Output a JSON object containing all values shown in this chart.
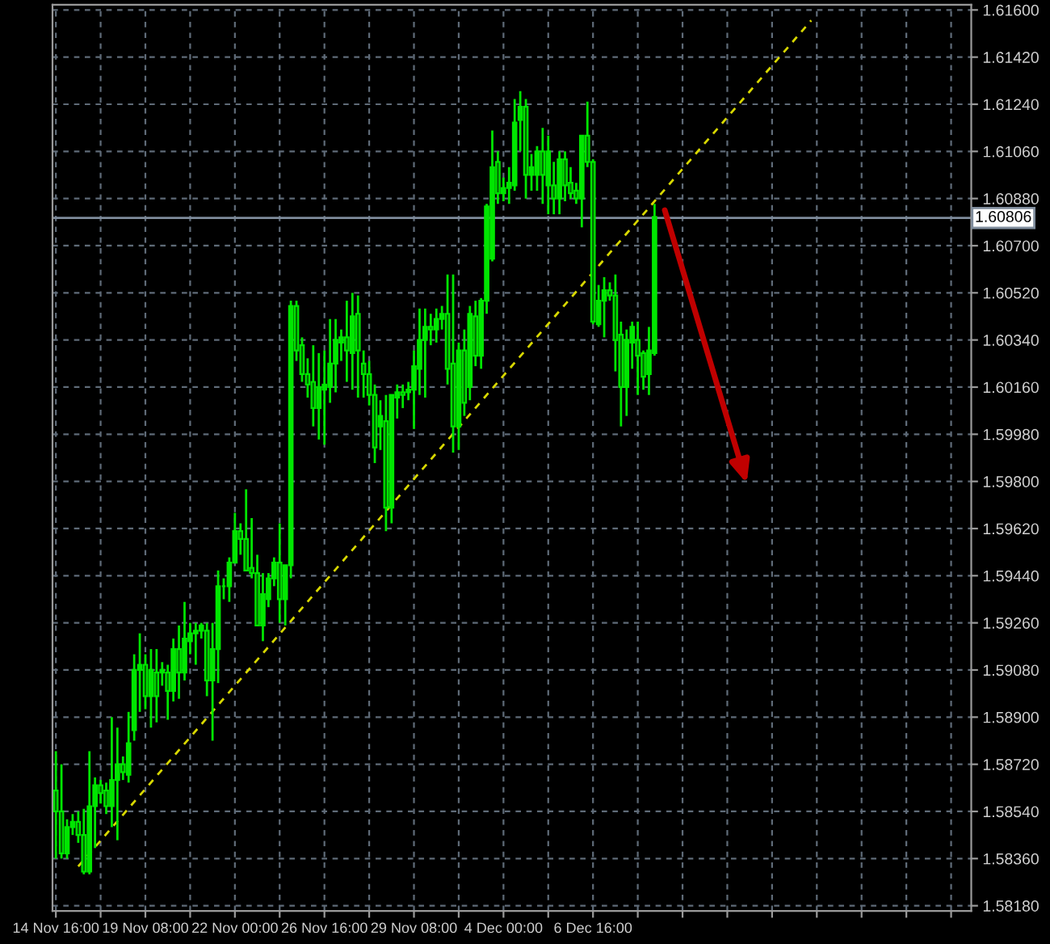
{
  "chart_data": {
    "type": "candlestick",
    "color": "#00e600",
    "categories": [
      "14 Nov 16:00",
      null,
      null,
      null,
      null,
      null,
      null,
      null,
      null,
      null,
      null,
      null,
      null,
      null,
      null,
      null,
      "19 Nov 08:00",
      null,
      null,
      null,
      null,
      null,
      null,
      null,
      null,
      null,
      null,
      null,
      null,
      null,
      null,
      null,
      "22 Nov 00:00",
      null,
      null,
      null,
      null,
      null,
      null,
      null,
      null,
      null,
      null,
      null,
      null,
      null,
      null,
      null,
      "26 Nov 16:00",
      null,
      null,
      null,
      null,
      null,
      null,
      null,
      null,
      null,
      null,
      null,
      null,
      null,
      null,
      null,
      "29 Nov 08:00",
      null,
      null,
      null,
      null,
      null,
      null,
      null,
      null,
      null,
      null,
      null,
      null,
      null,
      null,
      null,
      "4 Dec 00:00",
      null,
      null,
      null,
      null,
      null,
      null,
      null,
      null,
      null,
      null,
      null,
      null,
      null,
      null,
      null,
      "6 Dec 16:00",
      null,
      null,
      null,
      null,
      null,
      null,
      null,
      null,
      null,
      null,
      null,
      null,
      null,
      null,
      null,
      null,
      null,
      null,
      null,
      null,
      null,
      null,
      null,
      null,
      null,
      null,
      null,
      null,
      null,
      null,
      null,
      null,
      null,
      null,
      null,
      null,
      null,
      null,
      null,
      null,
      null,
      null,
      null,
      null,
      null,
      null,
      null,
      null,
      null,
      null,
      null,
      null,
      null,
      null,
      null,
      null,
      null,
      null,
      null,
      null,
      null,
      null,
      null,
      null,
      null,
      null,
      null
    ],
    "ohlc": [
      [
        1.5862,
        1.5877,
        1.5836,
        1.5854
      ],
      [
        1.5854,
        1.5872,
        1.5836,
        1.5838
      ],
      [
        1.5838,
        1.5851,
        1.5836,
        1.5848
      ],
      [
        1.5848,
        1.5853,
        1.5845,
        1.585
      ],
      [
        1.585,
        1.5854,
        1.5842,
        1.5845
      ],
      [
        1.5845,
        1.5855,
        1.583,
        1.5831
      ],
      [
        1.5831,
        1.5877,
        1.583,
        1.5856
      ],
      [
        1.5856,
        1.5867,
        1.584,
        1.5864
      ],
      [
        1.5864,
        1.5866,
        1.5857,
        1.5861
      ],
      [
        1.5862,
        1.5865,
        1.5853,
        1.5856
      ],
      [
        1.5856,
        1.589,
        1.5848,
        1.5866
      ],
      [
        1.5866,
        1.5886,
        1.5843,
        1.5872
      ],
      [
        1.5872,
        1.5875,
        1.5866,
        1.5869
      ],
      [
        1.5868,
        1.5892,
        1.5865,
        1.588
      ],
      [
        1.5885,
        1.5914,
        1.5881,
        1.5908
      ],
      [
        1.5908,
        1.5922,
        1.5892,
        1.591
      ],
      [
        1.591,
        1.5914,
        1.5893,
        1.5898
      ],
      [
        1.5898,
        1.5916,
        1.5886,
        1.5908
      ],
      [
        1.5907,
        1.5916,
        1.5888,
        1.5898
      ],
      [
        1.5907,
        1.5911,
        1.5902,
        1.5908
      ],
      [
        1.5907,
        1.591,
        1.5889,
        1.59
      ],
      [
        1.59,
        1.592,
        1.5896,
        1.5916
      ],
      [
        1.5916,
        1.5925,
        1.5897,
        1.5907
      ],
      [
        1.5907,
        1.5934,
        1.5904,
        1.592
      ],
      [
        1.5919,
        1.5926,
        1.5914,
        1.5922
      ],
      [
        1.5922,
        1.5926,
        1.591,
        1.5923
      ],
      [
        1.5923,
        1.5926,
        1.592,
        1.5925
      ],
      [
        1.5923,
        1.5926,
        1.5898,
        1.5904
      ],
      [
        1.5904,
        1.5926,
        1.5881,
        1.5916
      ],
      [
        1.5916,
        1.5946,
        1.5903,
        1.594
      ],
      [
        1.594,
        1.5943,
        1.5935,
        1.594
      ],
      [
        1.594,
        1.5951,
        1.5934,
        1.5949
      ],
      [
        1.5949,
        1.5968,
        1.5949,
        1.5961
      ],
      [
        1.5961,
        1.5964,
        1.5952,
        1.5958
      ],
      [
        1.5958,
        1.5977,
        1.5946,
        1.5946
      ],
      [
        1.5947,
        1.5966,
        1.5943,
        1.5945
      ],
      [
        1.5945,
        1.5952,
        1.5925,
        1.5925
      ],
      [
        1.5925,
        1.5945,
        1.5919,
        1.5937
      ],
      [
        1.5935,
        1.5945,
        1.5932,
        1.5943
      ],
      [
        1.5943,
        1.5951,
        1.594,
        1.5949
      ],
      [
        1.5949,
        1.5964,
        1.5926,
        1.5935
      ],
      [
        1.5935,
        1.5948,
        1.5925,
        1.5948
      ],
      [
        1.5948,
        1.6049,
        1.5943,
        1.6047
      ],
      [
        1.6047,
        1.6049,
        1.6026,
        1.603
      ],
      [
        1.6032,
        1.6035,
        1.6018,
        1.6021
      ],
      [
        1.6021,
        1.6027,
        1.6012,
        1.6017
      ],
      [
        1.6018,
        1.6032,
        1.6001,
        1.6008
      ],
      [
        1.6008,
        1.6029,
        1.5996,
        1.6016
      ],
      [
        1.6015,
        1.603,
        1.5994,
        1.6017
      ],
      [
        1.6016,
        1.6042,
        1.601,
        1.6025
      ],
      [
        1.6025,
        1.6042,
        1.6014,
        1.6034
      ],
      [
        1.6033,
        1.6038,
        1.6026,
        1.6035
      ],
      [
        1.6035,
        1.6049,
        1.6018,
        1.603
      ],
      [
        1.6029,
        1.6052,
        1.6015,
        1.6043
      ],
      [
        1.6044,
        1.6051,
        1.6012,
        1.603
      ],
      [
        1.6025,
        1.603,
        1.6012,
        1.6021
      ],
      [
        1.6021,
        1.6026,
        1.6009,
        1.6013
      ],
      [
        1.6013,
        1.6017,
        1.5987,
        1.5993
      ],
      [
        1.6001,
        1.6011,
        1.5992,
        1.6005
      ],
      [
        1.6003,
        1.6013,
        1.5961,
        1.597
      ],
      [
        1.597,
        1.6013,
        1.5964,
        1.6013
      ],
      [
        1.6012,
        1.6017,
        1.6004,
        1.6014
      ],
      [
        1.6014,
        1.6017,
        1.6008,
        1.6013
      ],
      [
        1.6014,
        1.6018,
        1.6011,
        1.6015
      ],
      [
        1.6015,
        1.603,
        1.6,
        1.6024
      ],
      [
        1.6023,
        1.6046,
        1.6013,
        1.6034
      ],
      [
        1.6034,
        1.6046,
        1.6012,
        1.6039
      ],
      [
        1.6039,
        1.6044,
        1.6032,
        1.6038
      ],
      [
        1.6038,
        1.6046,
        1.6033,
        1.6042
      ],
      [
        1.6042,
        1.6047,
        1.6038,
        1.6044
      ],
      [
        1.6044,
        1.6059,
        1.6017,
        1.6023
      ],
      [
        1.6025,
        1.6059,
        1.5991,
        1.6001
      ],
      [
        1.6001,
        1.6033,
        1.5992,
        1.603
      ],
      [
        1.603,
        1.6038,
        1.6005,
        1.601
      ],
      [
        1.6016,
        1.6047,
        1.6011,
        1.6044
      ],
      [
        1.6043,
        1.6049,
        1.6024,
        1.6028
      ],
      [
        1.6028,
        1.605,
        1.6023,
        1.6049
      ],
      [
        1.6049,
        1.6086,
        1.6044,
        1.6085
      ],
      [
        1.6065,
        1.6114,
        1.6064,
        1.61
      ],
      [
        1.6102,
        1.6106,
        1.6086,
        1.609
      ],
      [
        1.609,
        1.6096,
        1.6087,
        1.6092
      ],
      [
        1.6092,
        1.61,
        1.6086,
        1.6094
      ],
      [
        1.6093,
        1.6126,
        1.6091,
        1.6117
      ],
      [
        1.6118,
        1.6129,
        1.6106,
        1.6123
      ],
      [
        1.6123,
        1.6126,
        1.6088,
        1.6097
      ],
      [
        1.6097,
        1.6105,
        1.6091,
        1.61
      ],
      [
        1.6097,
        1.6108,
        1.6091,
        1.6106
      ],
      [
        1.6106,
        1.6115,
        1.6086,
        1.6097
      ],
      [
        1.6093,
        1.6112,
        1.6082,
        1.6106
      ],
      [
        1.6093,
        1.6102,
        1.6082,
        1.6088
      ],
      [
        1.6088,
        1.6106,
        1.6082,
        1.6103
      ],
      [
        1.6103,
        1.6106,
        1.6087,
        1.6093
      ],
      [
        1.6094,
        1.61,
        1.6088,
        1.609
      ],
      [
        1.6091,
        1.6094,
        1.6086,
        1.6088
      ],
      [
        1.6088,
        1.6112,
        1.6077,
        1.6112
      ],
      [
        1.6112,
        1.6125,
        1.61,
        1.6102
      ],
      [
        1.6102,
        1.6103,
        1.604,
        1.6041
      ],
      [
        1.604,
        1.6055,
        1.6039,
        1.6049
      ],
      [
        1.6049,
        1.6058,
        1.6035,
        1.6053
      ],
      [
        1.6053,
        1.6056,
        1.6049,
        1.6051
      ],
      [
        1.6051,
        1.6059,
        1.6022,
        1.6034
      ],
      [
        1.6036,
        1.6041,
        1.6001,
        1.6016
      ],
      [
        1.6016,
        1.6038,
        1.6005,
        1.6034
      ],
      [
        1.6033,
        1.6041,
        1.6023,
        1.6039
      ],
      [
        1.6034,
        1.6041,
        1.6013,
        1.6028
      ],
      [
        1.6029,
        1.603,
        1.6015,
        1.602
      ],
      [
        1.6021,
        1.6039,
        1.6013,
        1.603
      ],
      [
        1.6029,
        1.6086,
        1.6028,
        1.6081
      ],
      null,
      null,
      null,
      null,
      null,
      null,
      null,
      null,
      null,
      null,
      null,
      null,
      null,
      null,
      null,
      null,
      null,
      null,
      null,
      null,
      null,
      null,
      null,
      null,
      null,
      null,
      null,
      null,
      null,
      null,
      null,
      null,
      null,
      null,
      null,
      null,
      null,
      null,
      null,
      null,
      null,
      null,
      null,
      null,
      null,
      null,
      null,
      null,
      null,
      null,
      null,
      null,
      null,
      null,
      null,
      null
    ],
    "series": [
      {
        "type": "line",
        "values": [
          null,
          null,
          null,
          null,
          1.5833,
          null,
          null,
          null,
          null,
          null,
          null,
          null,
          null,
          null,
          null,
          null,
          null,
          null,
          null,
          null,
          null,
          null,
          null,
          null,
          null,
          null,
          null,
          null,
          null,
          null,
          null,
          null,
          null,
          null,
          null,
          null,
          null,
          null,
          null,
          null,
          null,
          null,
          null,
          null,
          null,
          null,
          null,
          null,
          null,
          null,
          null,
          null,
          null,
          null,
          null,
          null,
          null,
          null,
          null,
          null,
          null,
          null,
          null,
          null,
          null,
          null,
          null,
          null,
          null,
          null,
          null,
          null,
          null,
          null,
          null,
          null,
          null,
          null,
          null,
          null,
          null,
          null,
          null,
          null,
          null,
          null,
          null,
          null,
          null,
          null,
          null,
          null,
          null,
          null,
          null,
          null,
          null,
          null,
          null,
          null,
          null,
          null,
          null,
          null,
          null,
          null,
          null,
          null,
          null,
          null,
          null,
          null,
          null,
          null,
          null,
          null,
          null,
          null,
          null,
          null,
          null,
          null,
          null,
          null,
          null,
          null,
          null,
          null,
          null,
          null,
          null,
          null,
          null,
          null,
          null,
          1.6156,
          null,
          null,
          null,
          null,
          null,
          null,
          null,
          null,
          null,
          null,
          null,
          null,
          null,
          null,
          null,
          null,
          null,
          null,
          null,
          null,
          null,
          null,
          null,
          null,
          null,
          null,
          null,
          null
        ],
        "color": "#d8d800",
        "line_style": "dashed"
      }
    ],
    "ylim": [
      1.5816,
      1.6162
    ],
    "yticks": [
      {
        "value": 1.5818,
        "label": "1.58180"
      },
      {
        "value": 1.5836,
        "label": "1.58360"
      },
      {
        "value": 1.5854,
        "label": "1.58540"
      },
      {
        "value": 1.5872,
        "label": "1.58720"
      },
      {
        "value": 1.589,
        "label": "1.58900"
      },
      {
        "value": 1.5908,
        "label": "1.59080"
      },
      {
        "value": 1.5926,
        "label": "1.59260"
      },
      {
        "value": 1.5944,
        "label": "1.59440"
      },
      {
        "value": 1.5962,
        "label": "1.59620"
      },
      {
        "value": 1.598,
        "label": "1.59800"
      },
      {
        "value": 1.5998,
        "label": "1.59980"
      },
      {
        "value": 1.6016,
        "label": "1.60160"
      },
      {
        "value": 1.6034,
        "label": "1.60340"
      },
      {
        "value": 1.6052,
        "label": "1.60520"
      },
      {
        "value": 1.607,
        "label": "1.60700"
      },
      {
        "value": 1.6088,
        "label": "1.60880"
      },
      {
        "value": 1.6106,
        "label": "1.61060"
      },
      {
        "value": 1.6124,
        "label": "1.61240"
      },
      {
        "value": 1.6142,
        "label": "1.61420"
      },
      {
        "value": 1.616,
        "label": "1.61600"
      }
    ],
    "ref_lines": [
      {
        "axis": "y",
        "value": 1.60806,
        "label": "1.60806",
        "color": "#7f8c9c"
      }
    ],
    "grid": true
  }
}
